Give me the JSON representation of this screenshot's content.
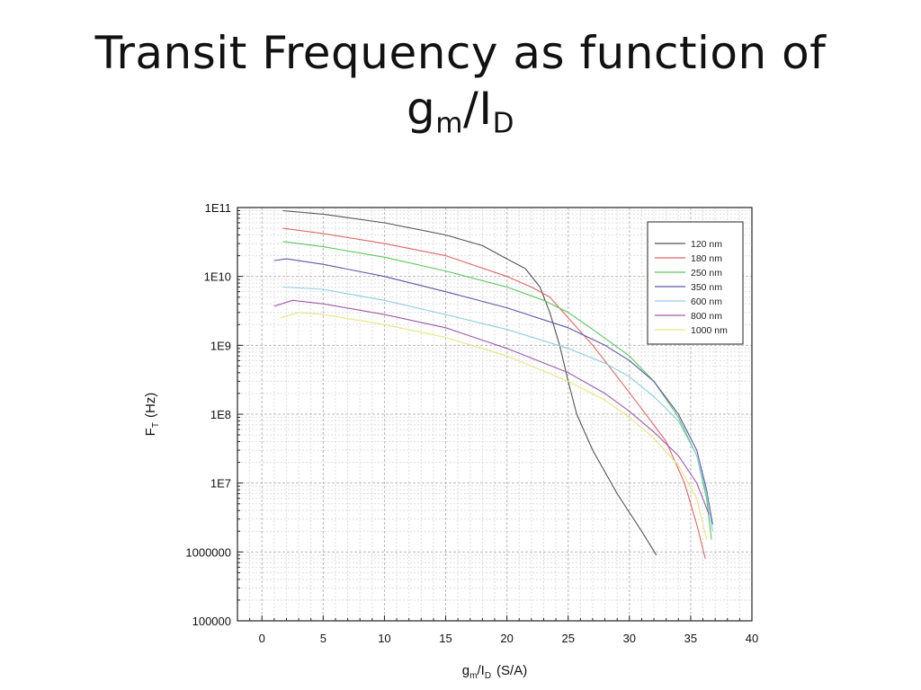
{
  "slide": {
    "title_line1": "Transit Frequency as  function of",
    "title_g": "g",
    "title_m": "m",
    "title_slash_i": "/I",
    "title_d": "D"
  },
  "chart_data": {
    "type": "line",
    "xlabel": "gm/ID (S/A)",
    "xlabel_parts": {
      "g": "g",
      "m": "m",
      "slash_i": "/I",
      "d": "D",
      "units": "(S/A)"
    },
    "ylabel": "FT (Hz)",
    "ylabel_parts": {
      "f": "F",
      "t": "T",
      "units": "(Hz)"
    },
    "xlim": [
      -2,
      40
    ],
    "ylim": [
      100000,
      100000000000
    ],
    "y_scale": "log",
    "grid": true,
    "legend_position": "top-right",
    "x_ticks": [
      0,
      5,
      10,
      15,
      20,
      25,
      30,
      35,
      40
    ],
    "y_ticks": [
      {
        "value": 100000000000,
        "label": "1E11"
      },
      {
        "value": 10000000000,
        "label": "1E10"
      },
      {
        "value": 1000000000,
        "label": "1E9"
      },
      {
        "value": 100000000,
        "label": "1E8"
      },
      {
        "value": 10000000,
        "label": "1E7"
      },
      {
        "value": 1000000,
        "label": "1000000"
      },
      {
        "value": 100000,
        "label": "100000"
      }
    ],
    "series": [
      {
        "name": "120 nm",
        "color": "#555555",
        "x": [
          1.7,
          5,
          10,
          15,
          18,
          20,
          21.5,
          22.7,
          23.5,
          24.3,
          25,
          25.7,
          27,
          29,
          31,
          32.2
        ],
        "y": [
          90000000000,
          80000000000,
          60000000000,
          40000000000,
          28000000000,
          18000000000,
          13000000000,
          7000000000,
          3000000000,
          1000000000,
          300000000,
          100000000,
          30000000,
          7000000,
          2000000,
          900000
        ]
      },
      {
        "name": "180 nm",
        "color": "#e06666",
        "x": [
          1.7,
          5,
          10,
          15,
          20,
          22,
          23.5,
          25,
          27,
          29,
          31,
          33,
          34.5,
          35.5,
          36.2
        ],
        "y": [
          50000000000,
          42000000000,
          30000000000,
          20000000000,
          10000000000,
          7000000000,
          5000000000,
          2500000000,
          1000000000,
          350000000,
          120000000,
          40000000,
          10000000,
          2500000,
          800000
        ]
      },
      {
        "name": "250 nm",
        "color": "#5cc85c",
        "x": [
          1.7,
          5,
          10,
          15,
          20,
          23,
          25,
          27,
          30,
          32,
          34,
          35.5,
          36.3,
          36.7
        ],
        "y": [
          32000000000,
          27000000000,
          19000000000,
          12000000000,
          7000000000,
          4500000000,
          3000000000,
          1700000000,
          700000000,
          300000000,
          90000000,
          25000000,
          6000000,
          1500000
        ]
      },
      {
        "name": "350 nm",
        "color": "#5a5aa8",
        "x": [
          1.0,
          2.0,
          5,
          10,
          15,
          20,
          25,
          28,
          30,
          32,
          34,
          35.5,
          36.3,
          36.8
        ],
        "y": [
          17000000000,
          18000000000,
          15000000000,
          10000000000,
          6000000000,
          3500000000,
          1800000000,
          1000000000,
          600000000,
          300000000,
          100000000,
          30000000,
          8000000,
          2500000
        ]
      },
      {
        "name": "600 nm",
        "color": "#8ccde3",
        "x": [
          1.7,
          5,
          10,
          15,
          20,
          25,
          28,
          30,
          32,
          34,
          35.5,
          36.3,
          36.8
        ],
        "y": [
          7000000000,
          6500000000,
          4500000000,
          2800000000,
          1700000000,
          900000000,
          550000000,
          350000000,
          180000000,
          80000000,
          25000000,
          7000000,
          2000000
        ]
      },
      {
        "name": "800 nm",
        "color": "#a05aa8",
        "x": [
          1.0,
          2.5,
          5,
          10,
          15,
          20,
          25,
          28,
          30,
          32,
          34,
          35.5,
          36.5
        ],
        "y": [
          3700000000,
          4500000000,
          4000000000,
          2800000000,
          1800000000,
          900000000,
          400000000,
          200000000,
          110000000,
          55000000,
          25000000,
          10000000,
          3500000
        ]
      },
      {
        "name": "1000 nm",
        "color": "#e6e680",
        "x": [
          1.5,
          3,
          5,
          10,
          15,
          20,
          25,
          28,
          30,
          32,
          34,
          35.5,
          36.3
        ],
        "y": [
          2500000000,
          3000000000,
          2800000000,
          2000000000,
          1300000000,
          700000000,
          300000000,
          160000000,
          90000000,
          45000000,
          18000000,
          6000000,
          1500000
        ]
      }
    ]
  }
}
